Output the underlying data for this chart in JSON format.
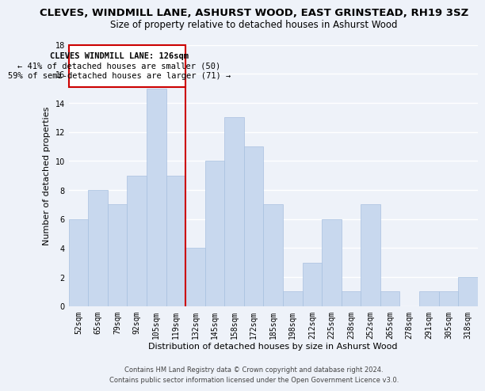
{
  "title": "CLEVES, WINDMILL LANE, ASHURST WOOD, EAST GRINSTEAD, RH19 3SZ",
  "subtitle": "Size of property relative to detached houses in Ashurst Wood",
  "xlabel": "Distribution of detached houses by size in Ashurst Wood",
  "ylabel": "Number of detached properties",
  "bar_labels": [
    "52sqm",
    "65sqm",
    "79sqm",
    "92sqm",
    "105sqm",
    "119sqm",
    "132sqm",
    "145sqm",
    "158sqm",
    "172sqm",
    "185sqm",
    "198sqm",
    "212sqm",
    "225sqm",
    "238sqm",
    "252sqm",
    "265sqm",
    "278sqm",
    "291sqm",
    "305sqm",
    "318sqm"
  ],
  "bar_values": [
    6,
    8,
    7,
    9,
    15,
    9,
    4,
    10,
    13,
    11,
    7,
    1,
    3,
    6,
    1,
    7,
    1,
    0,
    1,
    1,
    2
  ],
  "bar_color": "#c8d8ee",
  "bar_edge_color": "#a8c0e0",
  "annotation_text_line1": "CLEVES WINDMILL LANE: 126sqm",
  "annotation_text_line2": "← 41% of detached houses are smaller (50)",
  "annotation_text_line3": "59% of semi-detached houses are larger (71) →",
  "annotation_box_color": "#ffffff",
  "annotation_box_edge": "#cc0000",
  "vline_color": "#cc0000",
  "ylim": [
    0,
    18
  ],
  "yticks": [
    0,
    2,
    4,
    6,
    8,
    10,
    12,
    14,
    16,
    18
  ],
  "bg_color": "#eef2f9",
  "plot_bg_color": "#eef2f9",
  "grid_color": "#ffffff",
  "title_fontsize": 9.5,
  "subtitle_fontsize": 8.5,
  "axis_label_fontsize": 8,
  "tick_fontsize": 7,
  "annotation_fontsize": 7.5,
  "footer_fontsize": 6
}
